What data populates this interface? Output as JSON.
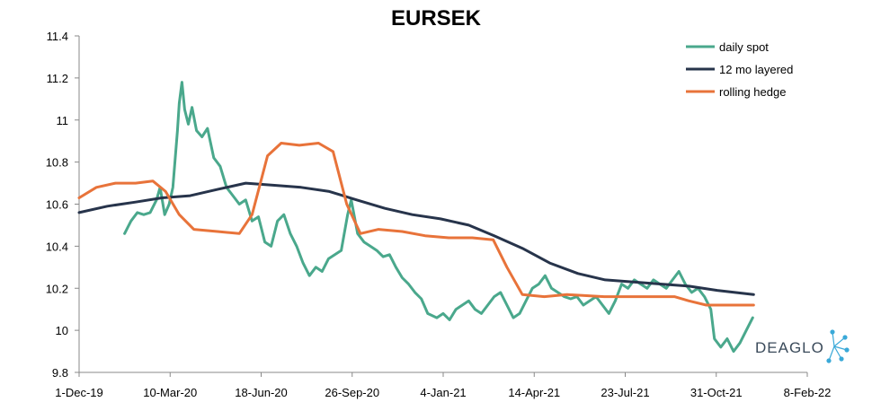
{
  "chart_data": {
    "type": "line",
    "title": "EURSEK",
    "xlabel": "",
    "ylabel": "",
    "xlim": [
      "2019-12-01",
      "2022-02-08"
    ],
    "ylim": [
      9.8,
      11.4
    ],
    "grid": false,
    "legend": "top-right",
    "x_ticks": [
      "1-Dec-19",
      "10-Mar-20",
      "18-Jun-20",
      "26-Sep-20",
      "4-Jan-21",
      "14-Apr-21",
      "23-Jul-21",
      "31-Oct-21",
      "8-Feb-22"
    ],
    "y_ticks": [
      "9.8",
      "10",
      "10.2",
      "10.4",
      "10.6",
      "10.8",
      "11",
      "11.2",
      "11.4"
    ],
    "series": [
      {
        "name": "daily spot",
        "color": "#4aa88c",
        "points": [
          [
            "2020-01-20",
            10.46
          ],
          [
            "2020-01-27",
            10.52
          ],
          [
            "2020-02-03",
            10.56
          ],
          [
            "2020-02-10",
            10.55
          ],
          [
            "2020-02-17",
            10.56
          ],
          [
            "2020-02-24",
            10.62
          ],
          [
            "2020-02-28",
            10.68
          ],
          [
            "2020-03-04",
            10.55
          ],
          [
            "2020-03-09",
            10.6
          ],
          [
            "2020-03-13",
            10.68
          ],
          [
            "2020-03-18",
            10.95
          ],
          [
            "2020-03-20",
            11.08
          ],
          [
            "2020-03-23",
            11.18
          ],
          [
            "2020-03-26",
            11.05
          ],
          [
            "2020-03-30",
            10.98
          ],
          [
            "2020-04-03",
            11.06
          ],
          [
            "2020-04-08",
            10.95
          ],
          [
            "2020-04-14",
            10.92
          ],
          [
            "2020-04-20",
            10.96
          ],
          [
            "2020-04-27",
            10.82
          ],
          [
            "2020-05-04",
            10.78
          ],
          [
            "2020-05-11",
            10.68
          ],
          [
            "2020-05-18",
            10.64
          ],
          [
            "2020-05-25",
            10.6
          ],
          [
            "2020-06-01",
            10.62
          ],
          [
            "2020-06-08",
            10.52
          ],
          [
            "2020-06-15",
            10.54
          ],
          [
            "2020-06-22",
            10.42
          ],
          [
            "2020-06-29",
            10.4
          ],
          [
            "2020-07-06",
            10.52
          ],
          [
            "2020-07-13",
            10.55
          ],
          [
            "2020-07-20",
            10.46
          ],
          [
            "2020-07-27",
            10.4
          ],
          [
            "2020-08-03",
            10.32
          ],
          [
            "2020-08-10",
            10.26
          ],
          [
            "2020-08-17",
            10.3
          ],
          [
            "2020-08-24",
            10.28
          ],
          [
            "2020-08-31",
            10.34
          ],
          [
            "2020-09-07",
            10.36
          ],
          [
            "2020-09-14",
            10.38
          ],
          [
            "2020-09-21",
            10.55
          ],
          [
            "2020-09-25",
            10.62
          ],
          [
            "2020-10-02",
            10.46
          ],
          [
            "2020-10-09",
            10.42
          ],
          [
            "2020-10-16",
            10.4
          ],
          [
            "2020-10-23",
            10.38
          ],
          [
            "2020-10-30",
            10.35
          ],
          [
            "2020-11-06",
            10.36
          ],
          [
            "2020-11-13",
            10.3
          ],
          [
            "2020-11-20",
            10.25
          ],
          [
            "2020-11-27",
            10.22
          ],
          [
            "2020-12-04",
            10.18
          ],
          [
            "2020-12-11",
            10.15
          ],
          [
            "2020-12-18",
            10.08
          ],
          [
            "2020-12-28",
            10.06
          ],
          [
            "2021-01-04",
            10.08
          ],
          [
            "2021-01-11",
            10.05
          ],
          [
            "2021-01-18",
            10.1
          ],
          [
            "2021-01-25",
            10.12
          ],
          [
            "2021-02-01",
            10.14
          ],
          [
            "2021-02-08",
            10.1
          ],
          [
            "2021-02-15",
            10.08
          ],
          [
            "2021-02-22",
            10.12
          ],
          [
            "2021-03-01",
            10.16
          ],
          [
            "2021-03-08",
            10.18
          ],
          [
            "2021-03-15",
            10.12
          ],
          [
            "2021-03-22",
            10.06
          ],
          [
            "2021-03-29",
            10.08
          ],
          [
            "2021-04-05",
            10.14
          ],
          [
            "2021-04-12",
            10.2
          ],
          [
            "2021-04-19",
            10.22
          ],
          [
            "2021-04-26",
            10.26
          ],
          [
            "2021-05-03",
            10.2
          ],
          [
            "2021-05-10",
            10.18
          ],
          [
            "2021-05-17",
            10.16
          ],
          [
            "2021-05-24",
            10.15
          ],
          [
            "2021-05-31",
            10.16
          ],
          [
            "2021-06-07",
            10.12
          ],
          [
            "2021-06-14",
            10.14
          ],
          [
            "2021-06-21",
            10.16
          ],
          [
            "2021-06-28",
            10.12
          ],
          [
            "2021-07-05",
            10.08
          ],
          [
            "2021-07-12",
            10.14
          ],
          [
            "2021-07-19",
            10.22
          ],
          [
            "2021-07-26",
            10.2
          ],
          [
            "2021-08-02",
            10.24
          ],
          [
            "2021-08-09",
            10.22
          ],
          [
            "2021-08-16",
            10.2
          ],
          [
            "2021-08-23",
            10.24
          ],
          [
            "2021-08-30",
            10.22
          ],
          [
            "2021-09-06",
            10.2
          ],
          [
            "2021-09-13",
            10.24
          ],
          [
            "2021-09-20",
            10.28
          ],
          [
            "2021-09-27",
            10.22
          ],
          [
            "2021-10-04",
            10.18
          ],
          [
            "2021-10-11",
            10.2
          ],
          [
            "2021-10-18",
            10.16
          ],
          [
            "2021-10-25",
            10.1
          ],
          [
            "2021-10-29",
            9.96
          ],
          [
            "2021-11-05",
            9.92
          ],
          [
            "2021-11-12",
            9.96
          ],
          [
            "2021-11-19",
            9.9
          ],
          [
            "2021-11-26",
            9.94
          ],
          [
            "2021-12-03",
            10.0
          ],
          [
            "2021-12-10",
            10.06
          ]
        ]
      },
      {
        "name": "12 mo layered",
        "color": "#27344b",
        "points": [
          [
            "2019-12-01",
            10.56
          ],
          [
            "2020-01-01",
            10.59
          ],
          [
            "2020-02-01",
            10.61
          ],
          [
            "2020-03-01",
            10.63
          ],
          [
            "2020-04-01",
            10.64
          ],
          [
            "2020-05-01",
            10.67
          ],
          [
            "2020-06-01",
            10.7
          ],
          [
            "2020-07-01",
            10.69
          ],
          [
            "2020-08-01",
            10.68
          ],
          [
            "2020-09-01",
            10.66
          ],
          [
            "2020-10-01",
            10.62
          ],
          [
            "2020-11-01",
            10.58
          ],
          [
            "2020-12-01",
            10.55
          ],
          [
            "2021-01-01",
            10.53
          ],
          [
            "2021-02-01",
            10.5
          ],
          [
            "2021-03-01",
            10.45
          ],
          [
            "2021-04-01",
            10.39
          ],
          [
            "2021-05-01",
            10.32
          ],
          [
            "2021-06-01",
            10.27
          ],
          [
            "2021-07-01",
            10.24
          ],
          [
            "2021-08-01",
            10.23
          ],
          [
            "2021-09-01",
            10.22
          ],
          [
            "2021-10-01",
            10.21
          ],
          [
            "2021-11-01",
            10.19
          ],
          [
            "2021-12-11",
            10.17
          ]
        ]
      },
      {
        "name": "rolling hedge",
        "color": "#e8733a",
        "points": [
          [
            "2019-12-01",
            10.63
          ],
          [
            "2019-12-20",
            10.68
          ],
          [
            "2020-01-10",
            10.7
          ],
          [
            "2020-02-01",
            10.7
          ],
          [
            "2020-02-20",
            10.71
          ],
          [
            "2020-03-05",
            10.66
          ],
          [
            "2020-03-20",
            10.55
          ],
          [
            "2020-04-05",
            10.48
          ],
          [
            "2020-05-01",
            10.47
          ],
          [
            "2020-05-25",
            10.46
          ],
          [
            "2020-06-08",
            10.55
          ],
          [
            "2020-06-25",
            10.83
          ],
          [
            "2020-07-10",
            10.89
          ],
          [
            "2020-07-30",
            10.88
          ],
          [
            "2020-08-20",
            10.89
          ],
          [
            "2020-09-05",
            10.85
          ],
          [
            "2020-09-20",
            10.6
          ],
          [
            "2020-10-05",
            10.46
          ],
          [
            "2020-10-25",
            10.48
          ],
          [
            "2020-11-20",
            10.47
          ],
          [
            "2020-12-15",
            10.45
          ],
          [
            "2021-01-10",
            10.44
          ],
          [
            "2021-02-05",
            10.44
          ],
          [
            "2021-02-28",
            10.43
          ],
          [
            "2021-03-15",
            10.3
          ],
          [
            "2021-04-01",
            10.17
          ],
          [
            "2021-04-25",
            10.16
          ],
          [
            "2021-05-20",
            10.17
          ],
          [
            "2021-06-30",
            10.16
          ],
          [
            "2021-08-15",
            10.16
          ],
          [
            "2021-09-15",
            10.16
          ],
          [
            "2021-10-01",
            10.14
          ],
          [
            "2021-10-20",
            10.12
          ],
          [
            "2021-11-20",
            10.12
          ],
          [
            "2021-12-11",
            10.12
          ]
        ]
      }
    ],
    "logo_text": "DEAGLO"
  }
}
